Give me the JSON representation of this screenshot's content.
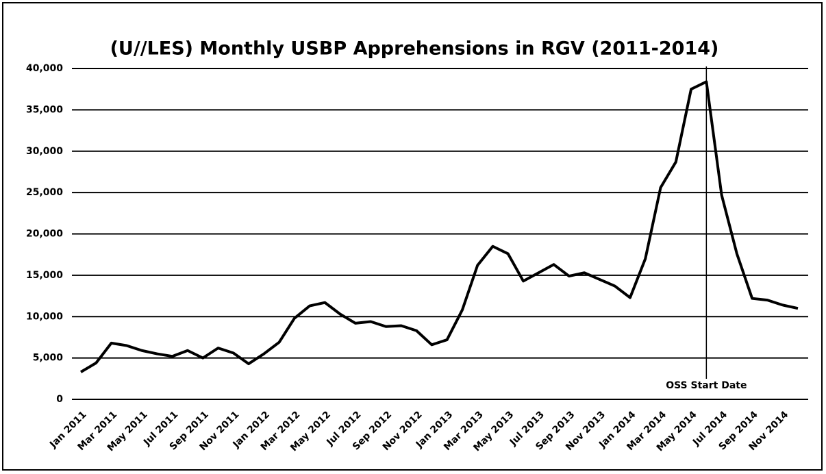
{
  "chart_data": {
    "type": "line",
    "title": "(U//LES)  Monthly USBP Apprehensions in RGV (2011-2014)",
    "categories": [
      "Jan 2011",
      null,
      "Mar 2011",
      null,
      "May 2011",
      null,
      "Jul 2011",
      null,
      "Sep 2011",
      null,
      "Nov 2011",
      null,
      "Jan 2012",
      null,
      "Mar 2012",
      null,
      "May 2012",
      null,
      "Jul 2012",
      null,
      "Sep 2012",
      null,
      "Nov 2012",
      null,
      "Jan 2013",
      null,
      "Mar 2013",
      null,
      "May 2013",
      null,
      "Jul 2013",
      null,
      "Sep 2013",
      null,
      "Nov 2013",
      null,
      "Jan 2014",
      null,
      "Mar 2014",
      null,
      "May 2014",
      null,
      "Jul 2014",
      null,
      "Sep 2014",
      null,
      "Nov 2014",
      null
    ],
    "values": [
      3300,
      4400,
      6800,
      6500,
      5900,
      5500,
      5200,
      5900,
      5000,
      6200,
      5600,
      4300,
      5500,
      6900,
      9800,
      11300,
      11700,
      10300,
      9200,
      9400,
      8800,
      8900,
      8300,
      6600,
      7200,
      10800,
      16200,
      18500,
      17600,
      14300,
      15300,
      16300,
      14900,
      15300,
      14500,
      13700,
      12300,
      17000,
      25600,
      28700,
      37500,
      38400,
      24700,
      17600,
      12200,
      12000,
      11400,
      11000
    ],
    "color": "#000000",
    "ylim": [
      0,
      40000
    ],
    "yticks": [
      0,
      {
        "value": 5000,
        "label": "5,000"
      },
      {
        "value": 10000,
        "label": "10,000"
      },
      {
        "value": 15000,
        "label": "15,000"
      },
      {
        "value": 20000,
        "label": "20,000"
      },
      {
        "value": 25000,
        "label": "25,000"
      },
      {
        "value": 30000,
        "label": "30,000"
      },
      {
        "value": 35000,
        "label": "35,000"
      },
      {
        "value": 40000,
        "label": "40,000"
      }
    ],
    "grid": true,
    "annotation": {
      "text": "OSS Start Date",
      "at": 41
    }
  }
}
